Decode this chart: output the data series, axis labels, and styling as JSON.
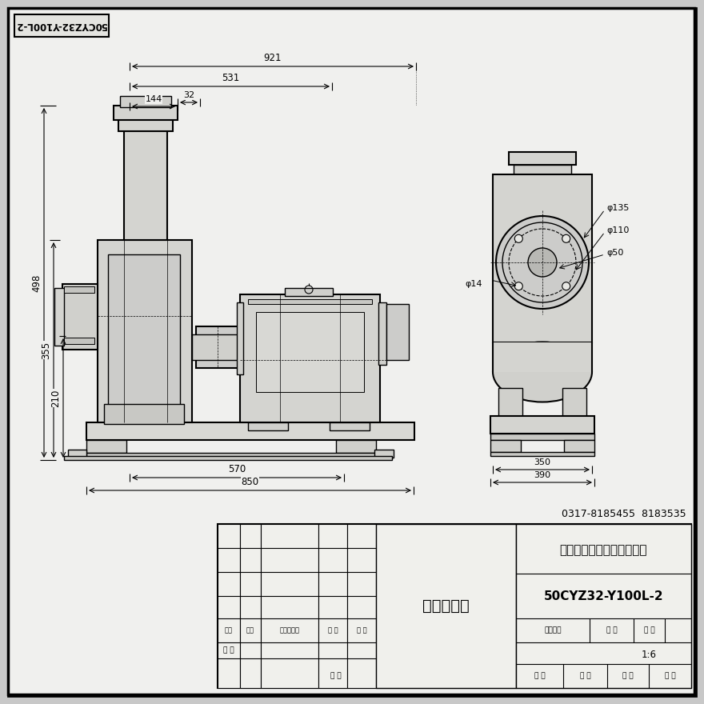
{
  "bg_color": "#c8c8c8",
  "drawing_bg": "#f0f0ee",
  "line_color": "#000000",
  "title_rotated": "50CYZ32-Y100L-2",
  "company": "河北远东泵业制造有限公司",
  "drawing_title": "机组接装图",
  "phone": "0317-8185455  8183535",
  "dim_921": "921",
  "dim_531": "531",
  "dim_144": "144",
  "dim_32": "32",
  "dim_498": "498",
  "dim_355": "355",
  "dim_210": "210",
  "dim_570": "570",
  "dim_850": "850",
  "dim_350": "350",
  "dim_390": "390",
  "dim_phi135": "φ135",
  "dim_phi110": "φ110",
  "dim_phi50": "φ50",
  "dim_phi14": "φ14",
  "ratio": "1:6",
  "model": "50CYZ32-Y100L-2",
  "header_labels": [
    "标记",
    "数量",
    "更改文件名",
    "签 字",
    "日 期"
  ],
  "design_label": "设 计",
  "date_label": "日 期",
  "graph_label": "图样标记",
  "weight_label": "重 量",
  "scale_label": "比 例",
  "audit_label": "审 核",
  "std_label": "标 准",
  "approve_label": "批 准",
  "sign_label": "签 字"
}
